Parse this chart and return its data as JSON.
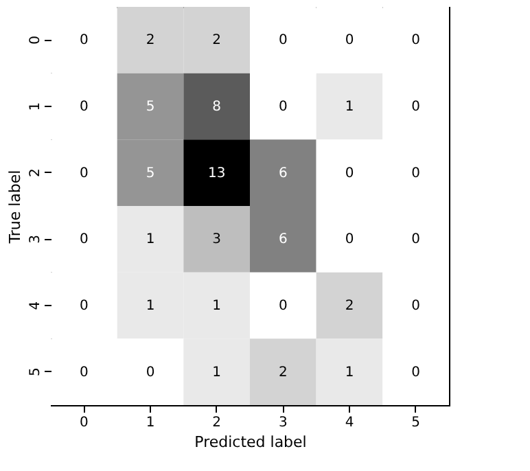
{
  "chart_data": {
    "type": "heatmap",
    "xlabel": "Predicted label",
    "ylabel": "True label",
    "categories": [
      "0",
      "1",
      "2",
      "3",
      "4",
      "5"
    ],
    "y_categories": [
      "0",
      "1",
      "2",
      "3",
      "4",
      "5"
    ],
    "cells": [
      [
        0,
        2,
        2,
        0,
        0,
        0
      ],
      [
        0,
        5,
        8,
        0,
        1,
        0
      ],
      [
        0,
        5,
        13,
        6,
        0,
        0
      ],
      [
        0,
        1,
        3,
        6,
        0,
        0
      ],
      [
        0,
        1,
        1,
        0,
        2,
        0
      ],
      [
        0,
        0,
        1,
        2,
        1,
        0
      ]
    ],
    "data_labels": true
  }
}
